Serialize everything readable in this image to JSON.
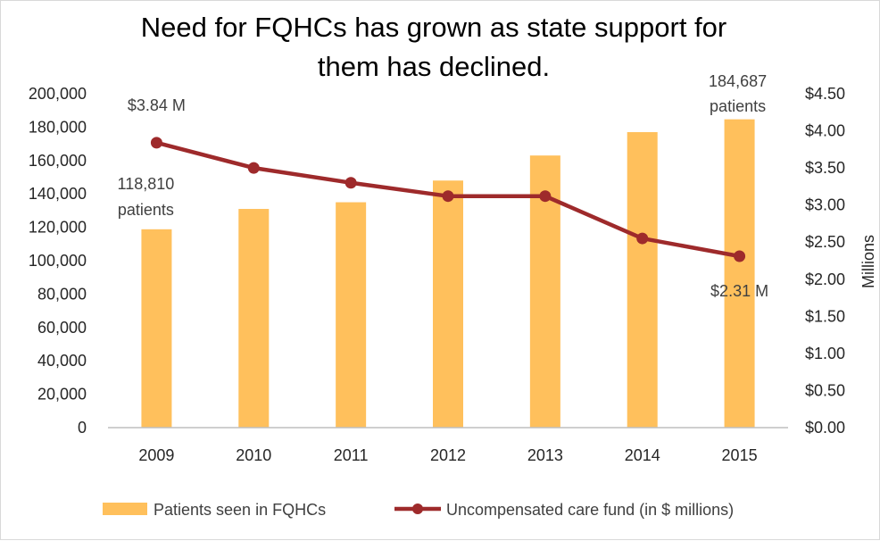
{
  "chart_data": {
    "type": "bar",
    "title": "Need for FQHCs has grown as state support for them has declined.",
    "categories": [
      "2009",
      "2010",
      "2011",
      "2012",
      "2013",
      "2014",
      "2015"
    ],
    "series": [
      {
        "name": "Patients seen in FQHCs",
        "type": "bar",
        "axis": "left",
        "color": "#FFC05C",
        "values": [
          118810,
          131000,
          135000,
          148000,
          163000,
          177000,
          184687
        ]
      },
      {
        "name": "Uncompensated care fund (in $ millions)",
        "type": "line",
        "axis": "right",
        "color": "#9E2A2B",
        "values": [
          3.84,
          3.5,
          3.3,
          3.12,
          3.12,
          2.55,
          2.31
        ]
      }
    ],
    "y_left": {
      "ylim": [
        0,
        200000
      ],
      "tick_labels": [
        "0",
        "20,000",
        "40,000",
        "60,000",
        "80,000",
        "100,000",
        "120,000",
        "140,000",
        "160,000",
        "180,000",
        "200,000"
      ]
    },
    "y_right": {
      "ylabel": "Millions",
      "ylim": [
        0,
        4.5
      ],
      "tick_labels": [
        "$0.00",
        "$0.50",
        "$1.00",
        "$1.50",
        "$2.00",
        "$2.50",
        "$3.00",
        "$3.50",
        "$4.00",
        "$4.50"
      ]
    },
    "annotations": {
      "first_fund": "$3.84 M",
      "first_patients": [
        "118,810",
        "patients"
      ],
      "last_patients": [
        "184,687",
        "patients"
      ],
      "last_fund": "$2.31 M"
    },
    "grid": false,
    "legend_position": "bottom"
  }
}
